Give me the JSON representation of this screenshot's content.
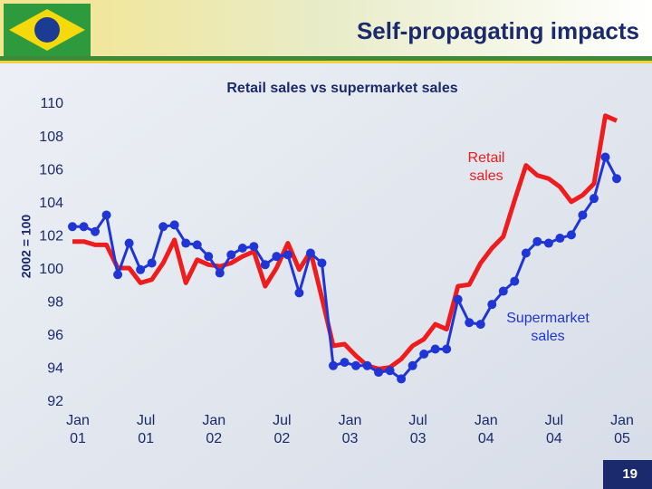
{
  "title": "Self-propagating impacts",
  "page_number": 19,
  "chart_data": {
    "type": "line",
    "title": "Retail sales vs supermarket sales",
    "y_label": "2002 = 100",
    "categories": [
      "Jan 01",
      null,
      null,
      null,
      null,
      null,
      "Jul 01",
      null,
      null,
      null,
      null,
      null,
      "Jan 02",
      null,
      null,
      null,
      null,
      null,
      "Jul 02",
      null,
      null,
      null,
      null,
      null,
      "Jan 03",
      null,
      null,
      null,
      null,
      null,
      "Jul 03",
      null,
      null,
      null,
      null,
      null,
      "Jan 04",
      null,
      null,
      null,
      null,
      null,
      "Jul 04",
      null,
      null,
      null,
      null,
      null,
      "Jan 05"
    ],
    "series": [
      {
        "name": "Retail sales",
        "color": "#ee1c1c",
        "markers": false,
        "values": [
          101.7,
          101.7,
          101.5,
          101.5,
          100.1,
          100.1,
          99.2,
          99.4,
          100.4,
          101.8,
          99.2,
          100.6,
          100.3,
          100.2,
          100.4,
          100.8,
          101.1,
          99.0,
          100.1,
          101.6,
          100.0,
          101.1,
          98.3,
          95.4,
          95.5,
          94.8,
          94.2,
          94.0,
          94.1,
          94.6,
          95.4,
          95.8,
          96.7,
          96.4,
          99.0,
          99.1,
          100.4,
          101.3,
          102.0,
          104.2,
          106.3,
          105.7,
          105.5,
          105.0,
          104.1,
          104.5,
          105.2,
          109.3,
          109.0
        ]
      },
      {
        "name": "Supermarket sales",
        "color": "#1f35d6",
        "markers": true,
        "values": [
          102.6,
          102.6,
          102.3,
          103.3,
          99.7,
          101.6,
          100.0,
          100.4,
          102.6,
          102.7,
          101.6,
          101.5,
          100.8,
          99.8,
          100.9,
          101.3,
          101.4,
          100.3,
          100.8,
          100.9,
          98.6,
          101.0,
          100.4,
          94.2,
          94.4,
          94.2,
          94.2,
          93.8,
          93.9,
          93.4,
          94.2,
          94.9,
          95.2,
          95.2,
          98.2,
          96.8,
          96.7,
          97.9,
          98.7,
          99.3,
          101.0,
          101.7,
          101.6,
          101.9,
          102.1,
          103.3,
          104.3,
          106.8,
          105.5
        ]
      }
    ],
    "ylim": [
      92,
      110
    ],
    "yticks": [
      92,
      94,
      96,
      98,
      100,
      102,
      104,
      106,
      108,
      110
    ],
    "grid": false
  }
}
